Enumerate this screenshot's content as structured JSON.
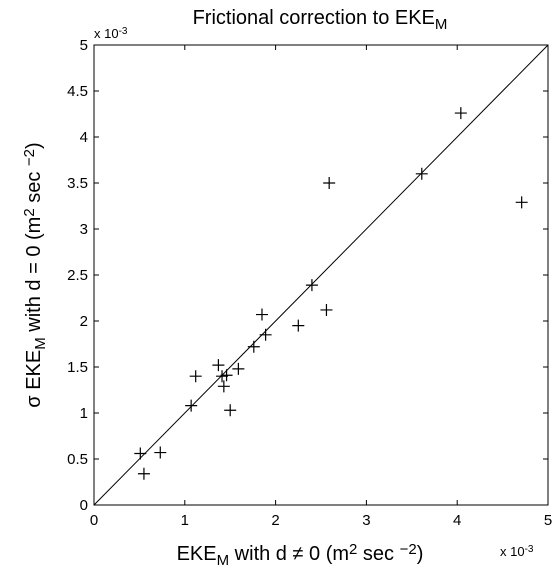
{
  "chart_data": {
    "type": "scatter",
    "title": [
      {
        "text": "Frictional correction to EKE"
      },
      {
        "text": "M",
        "sub": true
      }
    ],
    "xlabel": [
      {
        "text": "EKE"
      },
      {
        "text": "M",
        "sub": true
      },
      {
        "text": " with d ≠ 0 (m"
      },
      {
        "text": "2",
        "sup": true
      },
      {
        "text": " sec "
      },
      {
        "text": "−2",
        "sup": true
      },
      {
        "text": ")"
      }
    ],
    "ylabel": [
      {
        "text": "σ EKE"
      },
      {
        "text": "M",
        "sub": true
      },
      {
        "text": " with d = 0 (m"
      },
      {
        "text": "2",
        "sup": true
      },
      {
        "text": " sec "
      },
      {
        "text": "−2",
        "sup": true
      },
      {
        "text": ")"
      }
    ],
    "x_multiplier": {
      "base": "x 10",
      "exponent": "-3"
    },
    "y_multiplier": {
      "base": "x 10",
      "exponent": "-3"
    },
    "xlim": [
      0,
      5
    ],
    "ylim": [
      0,
      5
    ],
    "xticks": [
      0,
      1,
      2,
      3,
      4,
      5
    ],
    "yticks": [
      0,
      0.5,
      1,
      1.5,
      2,
      2.5,
      3,
      3.5,
      4,
      4.5,
      5
    ],
    "reference_line": [
      [
        0,
        0
      ],
      [
        5,
        5
      ]
    ],
    "marker": "+",
    "color": "#000000",
    "x": [
      0.51,
      0.55,
      0.73,
      1.07,
      1.12,
      1.37,
      1.41,
      1.43,
      1.46,
      1.5,
      1.59,
      1.76,
      1.85,
      1.89,
      2.25,
      2.4,
      2.56,
      2.59,
      3.61,
      4.04,
      4.71
    ],
    "y": [
      0.56,
      0.34,
      0.57,
      1.08,
      1.4,
      1.52,
      1.4,
      1.29,
      1.41,
      1.03,
      1.48,
      1.72,
      2.07,
      1.85,
      1.95,
      2.39,
      2.12,
      3.5,
      3.6,
      4.26,
      3.29
    ]
  }
}
